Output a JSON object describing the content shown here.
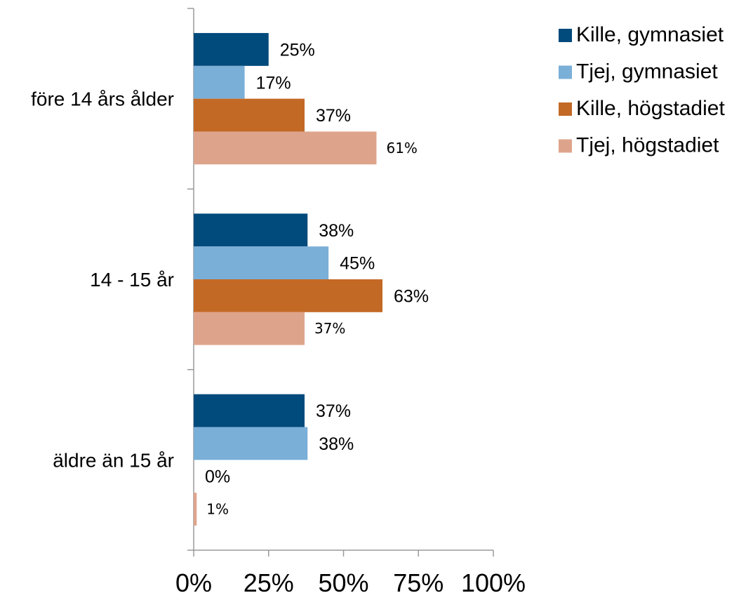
{
  "chart_data": {
    "type": "bar",
    "orientation": "horizontal",
    "categories": [
      "före 14 års ålder",
      "14 - 15 år",
      "äldre än 15 år"
    ],
    "series": [
      {
        "name": "Kille, gymnasiet",
        "color": "#004a7c",
        "values": [
          25,
          38,
          37
        ],
        "labels": [
          "25%",
          "38%",
          "37%"
        ]
      },
      {
        "name": "Tjej, gymnasiet",
        "color": "#7aafd8",
        "values": [
          17,
          45,
          38
        ],
        "labels": [
          "17%",
          "45%",
          "38%"
        ]
      },
      {
        "name": "Kille, högstadiet",
        "color": "#c36926",
        "values": [
          37,
          63,
          0
        ],
        "labels": [
          "37%",
          "63%",
          "0%"
        ]
      },
      {
        "name": "Tjej, högstadiet",
        "color": "#dea48b",
        "values": [
          61,
          37,
          1
        ],
        "labels": [
          "61%",
          "37%",
          "1%"
        ]
      }
    ],
    "xlim": [
      0,
      100
    ],
    "xticks": [
      0,
      25,
      50,
      75,
      100
    ],
    "xtick_labels": [
      "0%",
      "25%",
      "50%",
      "75%",
      "100%"
    ],
    "grid": false,
    "legend_position": "top-right"
  }
}
